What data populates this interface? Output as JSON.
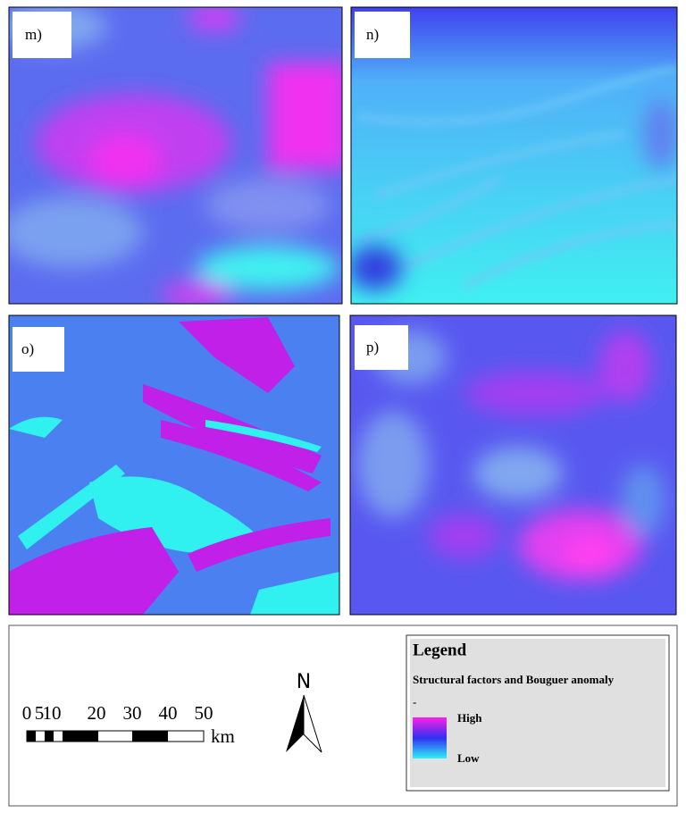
{
  "panels": [
    {
      "label": "m)"
    },
    {
      "label": "n)"
    },
    {
      "label": "o)"
    },
    {
      "label": "p)"
    }
  ],
  "scale_bar": {
    "labels": [
      "0",
      "5",
      "10",
      "20",
      "30",
      "40",
      "50"
    ],
    "unit": "km"
  },
  "north_arrow": {
    "label": "N"
  },
  "legend": {
    "title": "Legend",
    "subtitle": "Structural factors and Bouguer anomaly",
    "separator": "-",
    "high": "High",
    "low": "Low"
  }
}
